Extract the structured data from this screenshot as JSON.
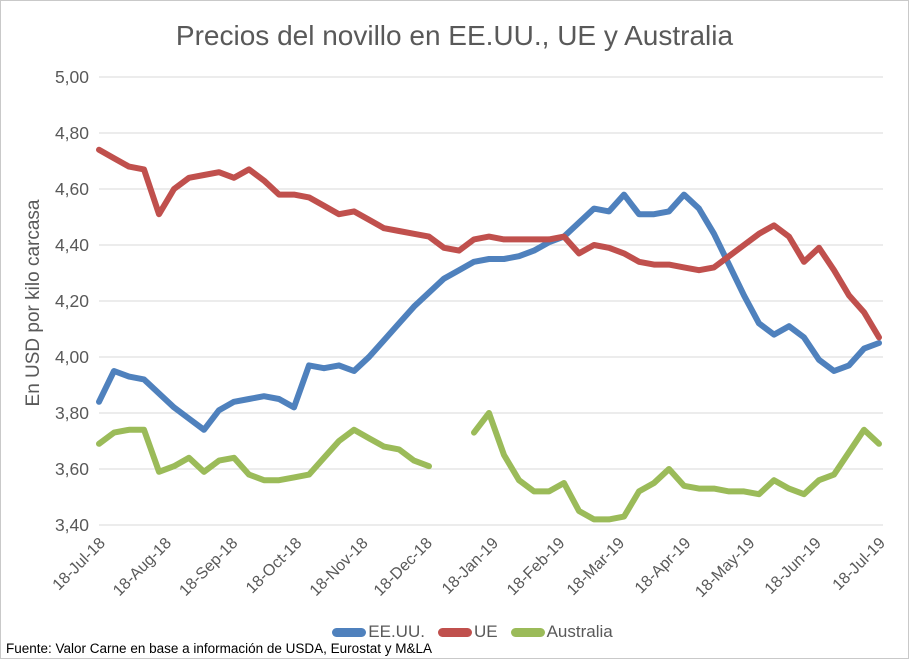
{
  "source": "Fuente: Valor Carne en base a información de USDA, Eurostat y M&LA",
  "colors": {
    "grid": "#D9D9D9",
    "axis_text": "#595959",
    "title_text": "#595959",
    "source_text": "#000000",
    "frame_border": "#C9C9C9",
    "series_blue": "#4F81BD",
    "series_red": "#C0504D",
    "series_green": "#9BBB59"
  },
  "chart_data": {
    "type": "line",
    "title": "Precios del novillo en EE.UU., UE y Australia",
    "ylabel": "En USD por kilo carcasa",
    "xlabel": "",
    "ylim": [
      3.4,
      5.0
    ],
    "grid": true,
    "legend_position": "bottom",
    "x_interval": "weekly points from 18-Jul-2018 to 18-Jul-2019",
    "y_ticks": [
      {
        "label": "5,00",
        "value": 5.0
      },
      {
        "label": "4,80",
        "value": 4.8
      },
      {
        "label": "4,60",
        "value": 4.6
      },
      {
        "label": "4,40",
        "value": 4.4
      },
      {
        "label": "4,20",
        "value": 4.2
      },
      {
        "label": "4,00",
        "value": 4.0
      },
      {
        "label": "3,80",
        "value": 3.8
      },
      {
        "label": "3,60",
        "value": 3.6
      },
      {
        "label": "3,40",
        "value": 3.4
      }
    ],
    "x_ticks": [
      {
        "label": "18-Jul-18",
        "day": 0
      },
      {
        "label": "18-Aug-18",
        "day": 31
      },
      {
        "label": "18-Sep-18",
        "day": 62
      },
      {
        "label": "18-Oct-18",
        "day": 92
      },
      {
        "label": "18-Nov-18",
        "day": 123
      },
      {
        "label": "18-Dec-18",
        "day": 153
      },
      {
        "label": "18-Jan-19",
        "day": 184
      },
      {
        "label": "18-Feb-19",
        "day": 215
      },
      {
        "label": "18-Mar-19",
        "day": 243
      },
      {
        "label": "18-Apr-19",
        "day": 274
      },
      {
        "label": "18-May-19",
        "day": 304
      },
      {
        "label": "18-Jun-19",
        "day": 335
      },
      {
        "label": "18-Jul-19",
        "day": 365
      }
    ],
    "series": [
      {
        "id": "eeuu",
        "name": "EE.UU.",
        "color": "#4F81BD",
        "values": [
          3.84,
          3.95,
          3.93,
          3.92,
          3.87,
          3.82,
          3.78,
          3.74,
          3.81,
          3.84,
          3.85,
          3.86,
          3.85,
          3.82,
          3.97,
          3.96,
          3.97,
          3.95,
          4.0,
          4.06,
          4.12,
          4.18,
          4.23,
          4.28,
          4.31,
          4.34,
          4.35,
          4.35,
          4.36,
          4.38,
          4.41,
          4.43,
          4.48,
          4.53,
          4.52,
          4.58,
          4.51,
          4.51,
          4.52,
          4.58,
          4.53,
          4.44,
          4.33,
          4.22,
          4.12,
          4.08,
          4.11,
          4.07,
          3.99,
          3.95,
          3.97,
          4.03,
          4.05
        ]
      },
      {
        "id": "ue",
        "name": "UE",
        "color": "#C0504D",
        "values": [
          4.74,
          4.71,
          4.68,
          4.67,
          4.51,
          4.6,
          4.64,
          4.65,
          4.66,
          4.64,
          4.67,
          4.63,
          4.58,
          4.58,
          4.57,
          4.54,
          4.51,
          4.52,
          4.49,
          4.46,
          4.45,
          4.44,
          4.43,
          4.39,
          4.38,
          4.42,
          4.43,
          4.42,
          4.42,
          4.42,
          4.42,
          4.43,
          4.37,
          4.4,
          4.39,
          4.37,
          4.34,
          4.33,
          4.33,
          4.32,
          4.31,
          4.32,
          4.36,
          4.4,
          4.44,
          4.47,
          4.43,
          4.34,
          4.39,
          4.31,
          4.22,
          4.16,
          4.07
        ]
      },
      {
        "id": "australia",
        "name": "Australia",
        "color": "#9BBB59",
        "values": [
          3.69,
          3.73,
          3.74,
          3.74,
          3.59,
          3.61,
          3.64,
          3.59,
          3.63,
          3.64,
          3.58,
          3.56,
          3.56,
          3.57,
          3.58,
          3.64,
          3.7,
          3.74,
          3.71,
          3.68,
          3.67,
          3.63,
          3.61,
          null,
          null,
          3.73,
          3.8,
          3.65,
          3.56,
          3.52,
          3.52,
          3.55,
          3.45,
          3.42,
          3.42,
          3.43,
          3.52,
          3.55,
          3.6,
          3.54,
          3.53,
          3.53,
          3.52,
          3.52,
          3.51,
          3.56,
          3.53,
          3.51,
          3.56,
          3.58,
          3.66,
          3.74,
          3.69
        ]
      }
    ]
  }
}
